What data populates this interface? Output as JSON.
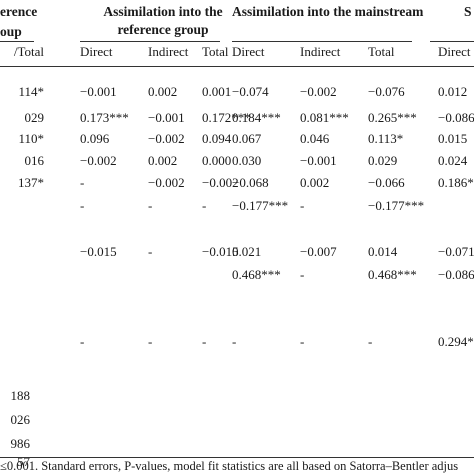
{
  "headers": {
    "col0_line1": "erence",
    "col0_line2": "oup",
    "group1_line1": "Assimilation into the",
    "group1_line2": "reference group",
    "group2": "Assimilation into the mainstream",
    "group3": "S"
  },
  "subheaders": [
    "/Total",
    "Direct",
    "Indirect",
    "Total",
    "Direct",
    "Indirect",
    "Total",
    "Direct"
  ],
  "rows": [
    [
      "114*",
      "−0.001",
      "0.002",
      "0.001",
      "−0.074",
      "−0.002",
      "−0.076",
      "0.012"
    ],
    [
      "029",
      "0.173***",
      "−0.001",
      "0.172***",
      "0.184***",
      "0.081***",
      "0.265***",
      "−0.086"
    ],
    [
      "110*",
      "0.096",
      "−0.002",
      "0.094",
      "0.067",
      "0.046",
      "0.113*",
      "0.015"
    ],
    [
      "016",
      "−0.002",
      "0.002",
      "0.000",
      "0.030",
      "−0.001",
      "0.029",
      "0.024"
    ],
    [
      "137*",
      "-",
      "−0.002",
      "−0.002",
      "−0.068",
      "0.002",
      "−0.066",
      "0.186*"
    ],
    [
      "",
      "-",
      "-",
      "-",
      "−0.177***",
      "-",
      "−0.177***",
      ""
    ],
    [
      "",
      "",
      "",
      "",
      "",
      "",
      "",
      ""
    ],
    [
      "",
      "−0.015",
      "-",
      "−0.015",
      "0.021",
      "−0.007",
      "0.014",
      "−0.071"
    ],
    [
      "",
      "",
      "",
      "",
      "0.468***",
      "-",
      "0.468***",
      "−0.086"
    ],
    [
      "",
      "",
      "",
      "",
      "",
      "",
      "",
      ""
    ],
    [
      "",
      "-",
      "-",
      "-",
      "-",
      "-",
      "-",
      "0.294*"
    ]
  ],
  "bottom_values": [
    "188",
    "026",
    "986",
    "57"
  ],
  "footnote": "≤0.001. Standard errors, P-values, model fit statistics are all based on Satorra–Bentler adjus"
}
